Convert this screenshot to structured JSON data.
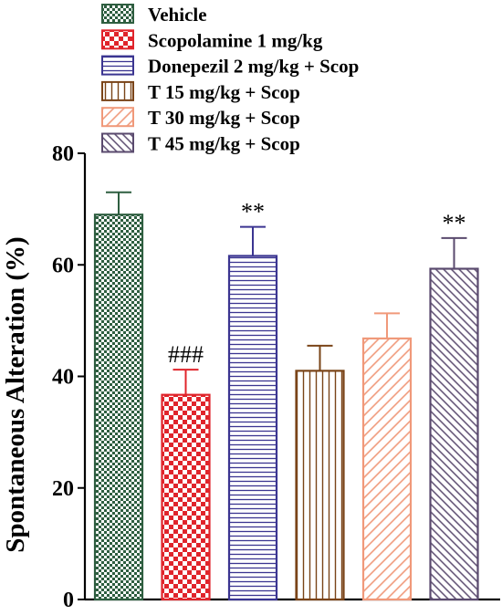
{
  "chart_data": {
    "type": "bar",
    "ylabel": "Spontaneous Alteration (%)",
    "xlabel": "",
    "title": "",
    "ylim": [
      0,
      80
    ],
    "yticks": [
      0,
      20,
      40,
      60,
      80
    ],
    "grid": false,
    "legend_position": "top",
    "categories": [
      "Vehicle",
      "Scopolamine 1 mg/kg",
      "Donepezil 2 mg/kg + Scop",
      "T 15 mg/kg + Scop",
      "T 30 mg/kg + Scop",
      "T 45 mg/kg + Scop"
    ],
    "values": [
      69,
      36.7,
      61.6,
      41,
      46.8,
      59.3
    ],
    "errors": [
      4,
      4.5,
      5.2,
      4.5,
      4.5,
      5.5
    ],
    "annotations": [
      "",
      "###",
      "**",
      "",
      "",
      "**"
    ],
    "colors": [
      "#2e5e40",
      "#e0242b",
      "#3b3591",
      "#7a4418",
      "#f0997a",
      "#5a4a6e"
    ],
    "patterns": [
      "checker-small",
      "checker-large",
      "horizontal",
      "vertical",
      "diagonal",
      "diagonal-dense"
    ]
  }
}
